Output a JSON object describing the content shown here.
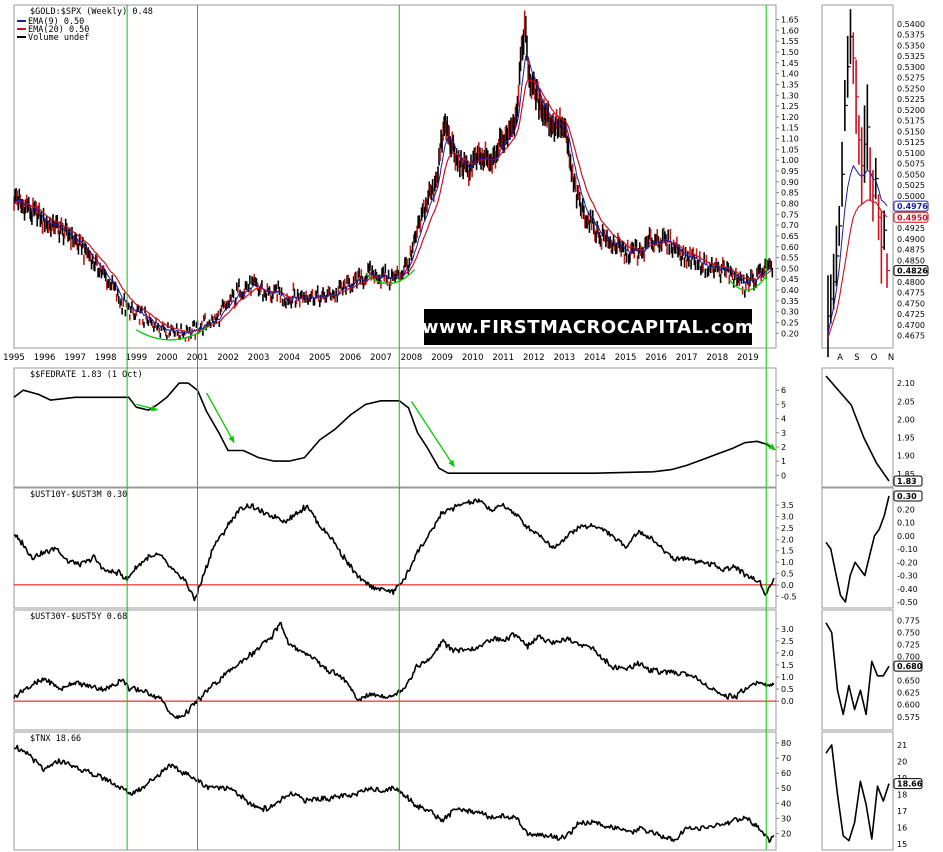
{
  "chart_data": {
    "type": "line",
    "watermark": "www.FIRSTMACROCAPITAL.com",
    "colors": {
      "price": "#000000",
      "ema_fast": "#1c1ca8",
      "ema_slow": "#cc1020",
      "marker": "#00cc00",
      "zero_line": "#dd0000",
      "watermark_bg": "#000000"
    },
    "main_x_ticks": [
      "1995",
      "1996",
      "1997",
      "1998",
      "1999",
      "2000",
      "2001",
      "2002",
      "2003",
      "2004",
      "2005",
      "2006",
      "2007",
      "2008",
      "2009",
      "2010",
      "2011",
      "2012",
      "2013",
      "2014",
      "2015",
      "2016",
      "2017",
      "2018",
      "2019"
    ],
    "zoom_x_ticks": [
      "A",
      "S",
      "O",
      "N"
    ],
    "vertical_markers_year": [
      1998.7,
      2001.0,
      2007.6,
      2019.6
    ],
    "panels": [
      {
        "id": "gold_spx",
        "title": "$GOLD:$SPX (Weekly) 0.48",
        "legend": [
          {
            "label": "EMA(9) 0.50",
            "color": "#1c1ca8"
          },
          {
            "label": "EMA(20) 0.50",
            "color": "#cc1020"
          },
          {
            "label": "Volume undef",
            "color": "#000000"
          }
        ],
        "ylim": [
          0.16,
          1.68
        ],
        "yticks": [
          "0.20",
          "0.25",
          "0.30",
          "0.35",
          "0.40",
          "0.45",
          "0.50",
          "0.55",
          "0.60",
          "0.65",
          "0.70",
          "0.75",
          "0.80",
          "0.85",
          "0.90",
          "0.95",
          "1.00",
          "1.05",
          "1.10",
          "1.15",
          "1.20",
          "1.25",
          "1.30",
          "1.35",
          "1.40",
          "1.45",
          "1.50",
          "1.55",
          "1.60",
          "1.65"
        ],
        "x": [
          1995.0,
          1996.0,
          1997.0,
          1997.5,
          1998.0,
          1998.5,
          1999.0,
          1999.5,
          2000.0,
          2000.5,
          2001.0,
          2001.5,
          2002.0,
          2002.5,
          2003.0,
          2003.5,
          2004.0,
          2005.0,
          2005.5,
          2006.0,
          2006.5,
          2007.0,
          2007.5,
          2008.0,
          2008.4,
          2008.8,
          2009.1,
          2009.4,
          2009.8,
          2010.2,
          2010.6,
          2011.0,
          2011.4,
          2011.7,
          2011.85,
          2012.0,
          2012.3,
          2012.6,
          2013.0,
          2013.3,
          2013.6,
          2014.0,
          2014.5,
          2015.0,
          2015.5,
          2016.0,
          2016.5,
          2017.0,
          2017.5,
          2018.0,
          2018.5,
          2018.9,
          2019.2,
          2019.5,
          2019.8
        ],
        "y": [
          0.83,
          0.72,
          0.63,
          0.55,
          0.46,
          0.35,
          0.28,
          0.25,
          0.22,
          0.21,
          0.22,
          0.26,
          0.33,
          0.42,
          0.4,
          0.38,
          0.37,
          0.37,
          0.38,
          0.43,
          0.47,
          0.46,
          0.45,
          0.55,
          0.78,
          0.9,
          1.17,
          1.02,
          0.95,
          1.02,
          0.98,
          1.1,
          1.18,
          1.62,
          1.4,
          1.32,
          1.24,
          1.17,
          1.15,
          0.88,
          0.77,
          0.68,
          0.62,
          0.57,
          0.58,
          0.64,
          0.61,
          0.55,
          0.52,
          0.5,
          0.47,
          0.42,
          0.46,
          0.5,
          0.48
        ],
        "ema_fast_last": 0.4976,
        "ema_slow_last": 0.495,
        "last": 0.4826,
        "zoom": {
          "ylim": [
            0.466,
            0.5425
          ],
          "yticks": [
            "0.4675",
            "0.4700",
            "0.4725",
            "0.4750",
            "0.4775",
            "0.4800",
            "0.4825",
            "0.4850",
            "0.4875",
            "0.4900",
            "0.4925",
            "0.4950",
            "0.4975",
            "0.5000",
            "0.5025",
            "0.5050",
            "0.5075",
            "0.5100",
            "0.5125",
            "0.5150",
            "0.5175",
            "0.5200",
            "0.5225",
            "0.5250",
            "0.5275",
            "0.5300",
            "0.5325",
            "0.5350",
            "0.5375",
            "0.5400"
          ],
          "close": [
            0.472,
            0.476,
            0.48,
            0.486,
            0.493,
            0.505,
            0.521,
            0.53,
            0.537,
            0.532,
            0.523,
            0.513,
            0.507,
            0.512,
            0.516,
            0.505,
            0.5,
            0.504,
            0.495,
            0.488,
            0.492,
            0.4826
          ],
          "ema_fast": [
            0.468,
            0.471,
            0.474,
            0.478,
            0.483,
            0.49,
            0.497,
            0.502,
            0.505,
            0.507,
            0.506,
            0.505,
            0.5045,
            0.505,
            0.506,
            0.5055,
            0.504,
            0.5035,
            0.5015,
            0.499,
            0.4985,
            0.4976
          ],
          "ema_slow": [
            0.467,
            0.469,
            0.471,
            0.473,
            0.476,
            0.48,
            0.484,
            0.488,
            0.492,
            0.495,
            0.4965,
            0.4975,
            0.498,
            0.4985,
            0.499,
            0.499,
            0.4985,
            0.4985,
            0.4975,
            0.4965,
            0.4958,
            0.495
          ],
          "badges": [
            "0.4976",
            "0.4950",
            "0.4826"
          ]
        }
      },
      {
        "id": "fedrate",
        "title": "$$FEDRATE 1.83 (1 Oct)",
        "ylim": [
          -0.4,
          7.0
        ],
        "yticks": [
          "0",
          "1",
          "2",
          "3",
          "4",
          "5",
          "6"
        ],
        "x": [
          1995.0,
          1995.3,
          1995.8,
          1996.2,
          1997.0,
          1998.0,
          1998.75,
          1999.0,
          1999.4,
          1999.7,
          2000.0,
          2000.4,
          2000.7,
          2001.0,
          2001.3,
          2001.7,
          2002.0,
          2002.5,
          2003.0,
          2003.5,
          2004.0,
          2004.5,
          2005.0,
          2005.5,
          2006.0,
          2006.5,
          2007.0,
          2007.6,
          2007.9,
          2008.2,
          2008.5,
          2008.9,
          2009.2,
          2010.0,
          2012.0,
          2014.0,
          2015.9,
          2016.5,
          2017.0,
          2017.5,
          2018.0,
          2018.5,
          2018.9,
          2019.3,
          2019.6,
          2019.85
        ],
        "y": [
          5.5,
          6.0,
          5.7,
          5.3,
          5.5,
          5.5,
          5.5,
          4.8,
          4.6,
          5.0,
          5.5,
          6.5,
          6.5,
          6.0,
          4.5,
          3.0,
          1.75,
          1.75,
          1.25,
          1.0,
          1.0,
          1.25,
          2.5,
          3.25,
          4.25,
          5.0,
          5.25,
          5.25,
          4.75,
          3.0,
          2.0,
          0.5,
          0.15,
          0.15,
          0.15,
          0.15,
          0.25,
          0.4,
          0.7,
          1.1,
          1.5,
          1.9,
          2.3,
          2.4,
          2.2,
          1.83
        ],
        "zoom": {
          "ylim": [
            1.83,
            2.12
          ],
          "yticks": [
            "1.85",
            "1.90",
            "1.95",
            "2.00",
            "2.05",
            "2.10"
          ],
          "y": [
            2.12,
            2.08,
            2.04,
            1.95,
            1.88,
            1.83
          ],
          "badge": "1.83"
        }
      },
      {
        "id": "ust10y_3m",
        "title": "$UST10Y-$UST3M 0.30",
        "ylim": [
          -0.75,
          3.9
        ],
        "yticks": [
          "-0.5",
          "0.0",
          "0.5",
          "1.0",
          "1.5",
          "2.0",
          "2.5",
          "3.0",
          "3.5"
        ],
        "zero_line": 0,
        "x": [
          1995.0,
          1995.3,
          1995.6,
          1996.0,
          1996.4,
          1996.8,
          1997.2,
          1997.6,
          1998.0,
          1998.5,
          1998.7,
          1999.0,
          1999.4,
          1999.8,
          2000.2,
          2000.6,
          2000.9,
          2001.1,
          2001.5,
          2001.9,
          2002.3,
          2002.7,
          2003.1,
          2003.5,
          2003.9,
          2004.3,
          2004.6,
          2005.0,
          2005.4,
          2005.8,
          2006.2,
          2006.6,
          2007.0,
          2007.4,
          2007.8,
          2008.2,
          2008.6,
          2009.0,
          2009.4,
          2009.8,
          2010.2,
          2010.6,
          2011.0,
          2011.4,
          2011.8,
          2012.2,
          2012.6,
          2013.0,
          2013.4,
          2013.8,
          2014.2,
          2014.6,
          2015.0,
          2015.4,
          2015.8,
          2016.2,
          2016.6,
          2017.0,
          2017.4,
          2017.8,
          2018.2,
          2018.6,
          2019.0,
          2019.4,
          2019.6,
          2019.85
        ],
        "y": [
          2.2,
          1.8,
          1.2,
          1.4,
          1.6,
          1.0,
          0.9,
          1.2,
          0.6,
          0.5,
          0.2,
          0.8,
          1.2,
          1.3,
          0.6,
          0.2,
          -0.6,
          0.0,
          1.6,
          2.4,
          3.2,
          3.5,
          3.2,
          3.0,
          2.8,
          3.2,
          3.5,
          2.6,
          2.0,
          1.2,
          0.4,
          0.0,
          -0.2,
          -0.3,
          0.3,
          1.5,
          2.2,
          3.2,
          3.4,
          3.6,
          3.7,
          3.3,
          3.5,
          3.1,
          2.5,
          2.2,
          1.6,
          2.0,
          2.5,
          2.6,
          2.5,
          2.1,
          1.7,
          2.3,
          2.1,
          1.6,
          1.1,
          1.2,
          1.0,
          0.9,
          0.7,
          0.8,
          0.4,
          0.1,
          -0.4,
          0.3
        ],
        "zoom": {
          "ylim": [
            -0.5,
            0.3
          ],
          "yticks": [
            "-0.50",
            "-0.40",
            "-0.30",
            "-0.20",
            "-0.10",
            "0.00",
            "0.10",
            "0.20"
          ],
          "y": [
            -0.05,
            -0.1,
            -0.28,
            -0.45,
            -0.5,
            -0.3,
            -0.2,
            -0.25,
            -0.3,
            -0.15,
            0.0,
            0.05,
            0.15,
            0.3
          ],
          "badge": "0.30"
        }
      },
      {
        "id": "ust30y_5y",
        "title": "$UST30Y-$UST5Y 0.68",
        "ylim": [
          -0.95,
          3.45
        ],
        "yticks": [
          "0.0",
          "0.5",
          "1.0",
          "1.5",
          "2.0",
          "2.5",
          "3.0"
        ],
        "zero_line": 0,
        "x": [
          1995.0,
          1995.5,
          1996.0,
          1996.5,
          1997.0,
          1997.5,
          1998.0,
          1998.5,
          1998.8,
          1999.3,
          1999.8,
          2000.1,
          2000.3,
          2000.6,
          2001.0,
          2001.4,
          2001.8,
          2002.2,
          2002.6,
          2003.0,
          2003.4,
          2003.7,
          2004.0,
          2004.4,
          2004.8,
          2005.2,
          2005.6,
          2006.0,
          2006.2,
          2006.6,
          2007.0,
          2007.4,
          2007.8,
          2008.2,
          2008.6,
          2009.0,
          2009.4,
          2009.8,
          2010.2,
          2010.6,
          2011.0,
          2011.4,
          2011.8,
          2012.2,
          2012.6,
          2013.0,
          2013.4,
          2013.8,
          2014.2,
          2014.6,
          2015.0,
          2015.4,
          2015.8,
          2016.2,
          2016.6,
          2017.0,
          2017.4,
          2017.8,
          2018.2,
          2018.6,
          2019.0,
          2019.4,
          2019.6,
          2019.85
        ],
        "y": [
          0.2,
          0.6,
          0.9,
          0.5,
          0.8,
          0.6,
          0.5,
          0.9,
          0.5,
          0.4,
          0.1,
          -0.5,
          -0.7,
          -0.5,
          0.0,
          0.5,
          1.0,
          1.4,
          1.8,
          2.2,
          2.6,
          3.3,
          2.3,
          2.1,
          1.8,
          1.3,
          1.1,
          0.6,
          0.0,
          0.3,
          0.2,
          0.2,
          0.6,
          1.5,
          1.7,
          2.5,
          2.1,
          2.1,
          2.2,
          2.6,
          2.5,
          2.8,
          2.3,
          2.7,
          2.4,
          2.6,
          2.4,
          2.3,
          1.8,
          1.4,
          1.3,
          1.6,
          1.3,
          1.2,
          1.2,
          1.1,
          0.9,
          0.5,
          0.2,
          0.2,
          0.6,
          0.8,
          0.6,
          0.68
        ],
        "zoom": {
          "ylim": [
            0.56,
            0.78
          ],
          "yticks": [
            "0.575",
            "0.600",
            "0.625",
            "0.650",
            "0.675",
            "0.700",
            "0.725",
            "0.750",
            "0.775"
          ],
          "y": [
            0.77,
            0.75,
            0.63,
            0.58,
            0.64,
            0.59,
            0.63,
            0.58,
            0.69,
            0.66,
            0.66,
            0.68
          ],
          "badge": "0.680"
        }
      },
      {
        "id": "tnx",
        "title": "$TNX 18.66",
        "ylim": [
          13.0,
          82.0
        ],
        "yticks": [
          "20",
          "30",
          "40",
          "50",
          "60",
          "70",
          "80"
        ],
        "x": [
          1995.0,
          1995.5,
          1996.0,
          1996.5,
          1997.0,
          1997.5,
          1998.0,
          1998.5,
          1998.8,
          1999.3,
          1999.8,
          2000.1,
          2000.4,
          2000.8,
          2001.2,
          2001.6,
          2002.0,
          2002.4,
          2002.8,
          2003.3,
          2003.7,
          2004.1,
          2004.5,
          2005.0,
          2005.5,
          2006.0,
          2006.5,
          2007.0,
          2007.5,
          2007.8,
          2008.2,
          2008.6,
          2009.0,
          2009.4,
          2009.8,
          2010.2,
          2010.6,
          2011.0,
          2011.4,
          2011.8,
          2012.2,
          2012.6,
          2013.0,
          2013.5,
          2013.9,
          2014.3,
          2014.7,
          2015.1,
          2015.5,
          2015.9,
          2016.3,
          2016.6,
          2017.0,
          2017.4,
          2017.8,
          2018.2,
          2018.6,
          2018.9,
          2019.2,
          2019.5,
          2019.7,
          2019.85
        ],
        "y": [
          78,
          72,
          62,
          68,
          64,
          60,
          56,
          50,
          46,
          52,
          60,
          66,
          62,
          58,
          52,
          50,
          51,
          45,
          38,
          36,
          42,
          46,
          42,
          43,
          44,
          45,
          50,
          48,
          50,
          45,
          38,
          35,
          28,
          36,
          35,
          34,
          30,
          32,
          30,
          20,
          19,
          18,
          17,
          27,
          28,
          25,
          24,
          20,
          23,
          21,
          17,
          15,
          23,
          24,
          24,
          26,
          29,
          31,
          26,
          20,
          16,
          18.66
        ],
        "zoom": {
          "ylim": [
            15,
            21.3
          ],
          "yticks": [
            "15",
            "16",
            "17",
            "18",
            "19",
            "20",
            "21"
          ],
          "y": [
            20.5,
            21.0,
            18.0,
            15.5,
            15.2,
            16.3,
            18.8,
            17.4,
            15.3,
            18.5,
            17.6,
            18.66
          ],
          "badge": "18.66"
        }
      }
    ]
  }
}
